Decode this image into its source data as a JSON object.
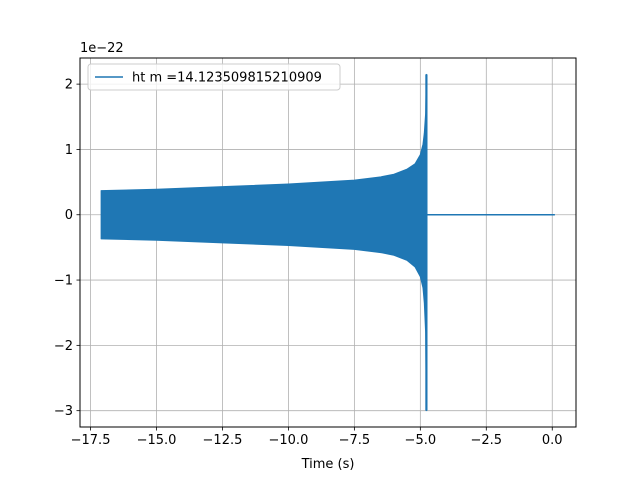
{
  "chart_data": {
    "type": "line",
    "title": "",
    "xlabel": "Time (s)",
    "ylabel": "",
    "y_offset_label": "1e−22",
    "xlim": [
      -17.9,
      0.9
    ],
    "ylim": [
      -3.25,
      2.4
    ],
    "x_ticks": [
      -17.5,
      -15.0,
      -12.5,
      -10.0,
      -7.5,
      -5.0,
      -2.5,
      0.0
    ],
    "x_tick_labels": [
      "−17.5",
      "−15.0",
      "−12.5",
      "−10.0",
      "−7.5",
      "−5.0",
      "−2.5",
      "0.0"
    ],
    "y_ticks": [
      -3,
      -2,
      -1,
      0,
      1,
      2
    ],
    "y_tick_labels": [
      "−3",
      "−2",
      "−1",
      "0",
      "1",
      "2"
    ],
    "grid": true,
    "legend_position": "upper-left",
    "series": [
      {
        "name": "ht m =14.123509815210909",
        "color": "#1f77b4",
        "signal_start": -17.1,
        "merger_time": -4.75,
        "end_time": 0.1,
        "upper_envelope": {
          "x": [
            -17.1,
            -15.0,
            -12.5,
            -10.0,
            -7.5,
            -6.5,
            -6.0,
            -5.5,
            -5.2,
            -5.0,
            -4.9,
            -4.85,
            -4.8,
            -4.77
          ],
          "y": [
            0.37,
            0.39,
            0.43,
            0.47,
            0.53,
            0.58,
            0.62,
            0.7,
            0.78,
            0.92,
            1.08,
            1.25,
            1.55,
            2.15
          ]
        },
        "lower_envelope": {
          "x": [
            -17.1,
            -15.0,
            -12.5,
            -10.0,
            -7.5,
            -6.5,
            -6.0,
            -5.5,
            -5.2,
            -5.0,
            -4.9,
            -4.85,
            -4.8,
            -4.77
          ],
          "y": [
            -0.37,
            -0.39,
            -0.43,
            -0.47,
            -0.53,
            -0.58,
            -0.62,
            -0.7,
            -0.8,
            -0.95,
            -1.12,
            -1.35,
            -1.8,
            -3.0
          ]
        },
        "post_merger_value": 0.0
      }
    ]
  }
}
